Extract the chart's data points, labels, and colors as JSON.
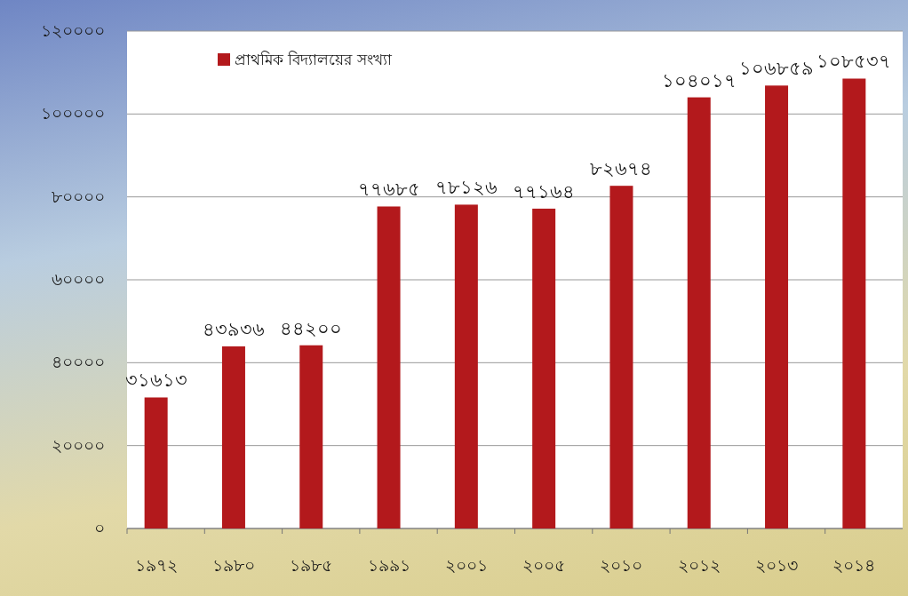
{
  "chart_data": {
    "type": "bar",
    "categories": [
      "১৯৭২",
      "১৯৮০",
      "১৯৮৫",
      "১৯৯১",
      "২০০১",
      "২০০৫",
      "২০১০",
      "২০১২",
      "২০১৩",
      "২০১৪"
    ],
    "series": [
      {
        "name": "প্রাথমিক বিদ্যালয়ের সংখ্যা",
        "color": "#b3191c",
        "values": [
          31613,
          43936,
          44200,
          77685,
          78126,
          77164,
          82674,
          104017,
          106859,
          108537
        ],
        "value_labels": [
          "৩১৬১৩",
          "৪৩৯৩৬",
          "৪৪২০০",
          "৭৭৬৮৫",
          "৭৮১২৬",
          "৭৭১৬৪",
          "৮২৬৭৪",
          "১০৪০১৭",
          "১০৬৮৫৯",
          "১০৮৫৩৭"
        ]
      }
    ],
    "ylim": [
      0,
      120000
    ],
    "yticks": [
      {
        "value": 0,
        "label": "০"
      },
      {
        "value": 20000,
        "label": "২০০০০"
      },
      {
        "value": 40000,
        "label": "৪০০০০"
      },
      {
        "value": 60000,
        "label": "৬০০০০"
      },
      {
        "value": 80000,
        "label": "৮০০০০"
      },
      {
        "value": 100000,
        "label": "১০০০০০"
      },
      {
        "value": 120000,
        "label": "১২০০০০"
      }
    ],
    "grid": "y",
    "legend": "top left"
  }
}
